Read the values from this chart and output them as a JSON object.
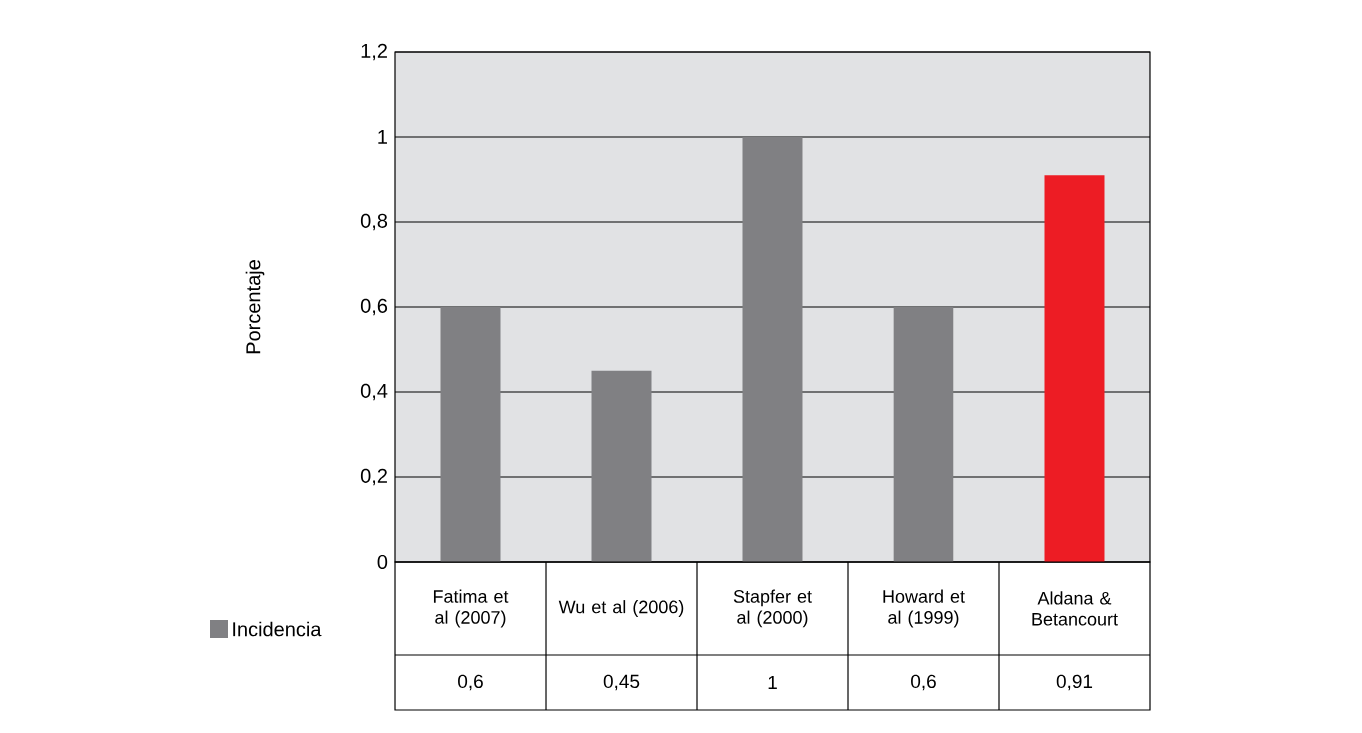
{
  "chart_data": {
    "type": "bar",
    "ylabel": "Porcentaje",
    "categories": [
      "Fatima et al (2007)",
      "Wu et al (2006)",
      "Stapfer et al (2000)",
      "Howard et al (1999)",
      "Aldana & Betancourt"
    ],
    "series": [
      {
        "name": "Incidencia",
        "color": "#808083",
        "colors": [
          "#808083",
          "#808083",
          "#808083",
          "#808083",
          "#ed1c24"
        ],
        "values": [
          0.6,
          0.45,
          1,
          0.6,
          0.91
        ],
        "value_labels": [
          "0,6",
          "0,45",
          "1",
          "0,6",
          "0,91"
        ]
      }
    ],
    "ylim": [
      0,
      1.2
    ],
    "yticks": [
      0,
      {
        "value": 0.2,
        "label": "0,2"
      },
      {
        "value": 0.4,
        "label": "0,4"
      },
      {
        "value": 0.6,
        "label": "0,6"
      },
      {
        "value": 0.8,
        "label": "0,8"
      },
      1,
      {
        "value": 1.2,
        "label": "1,2"
      }
    ],
    "grid": "y",
    "legend": "left"
  }
}
